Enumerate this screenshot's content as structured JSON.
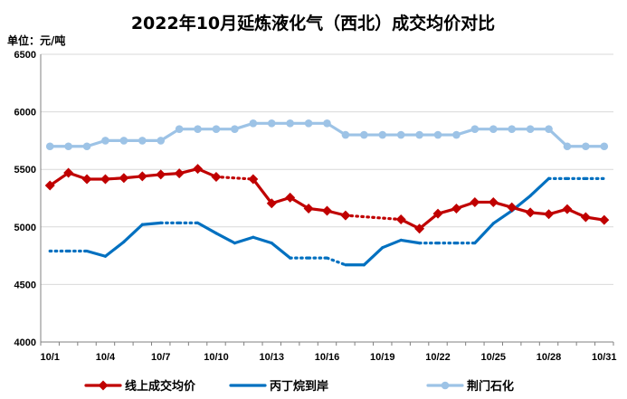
{
  "chart_data": {
    "type": "line",
    "title": "2022年10月延炼液化气（西北）成交均价对比",
    "ylabel": "单位：元/吨",
    "ylim": [
      4000,
      6500
    ],
    "yticks": [
      "4000",
      "4500",
      "5000",
      "5500",
      "6000",
      "6500"
    ],
    "x": [
      "10/1",
      "10/2",
      "10/3",
      "10/4",
      "10/5",
      "10/6",
      "10/7",
      "10/8",
      "10/9",
      "10/10",
      "10/11",
      "10/12",
      "10/13",
      "10/14",
      "10/15",
      "10/16",
      "10/17",
      "10/18",
      "10/19",
      "10/20",
      "10/21",
      "10/22",
      "10/23",
      "10/24",
      "10/25",
      "10/26",
      "10/27",
      "10/28",
      "10/29",
      "10/30",
      "10/31"
    ],
    "xticks": [
      "10/1",
      "10/4",
      "10/7",
      "10/10",
      "10/13",
      "10/16",
      "10/19",
      "10/22",
      "10/25",
      "10/28",
      "10/31"
    ],
    "grid": "horizontal",
    "legend": "bottom",
    "series": [
      {
        "name": "线上成交均价",
        "color": "#C00000",
        "marker": "diamond",
        "values": [
          5360,
          5470,
          5415,
          5415,
          5425,
          5440,
          5455,
          5465,
          5505,
          5435,
          null,
          5415,
          5205,
          5255,
          5160,
          5140,
          5100,
          null,
          null,
          5065,
          4985,
          5115,
          5160,
          5215,
          5215,
          5170,
          5125,
          5110,
          5155,
          5085,
          5060
        ],
        "gap_segments": [
          [
            9,
            11
          ],
          [
            16,
            19
          ]
        ]
      },
      {
        "name": "丙丁烷到岸",
        "color": "#0070C0",
        "marker": "none",
        "values": [
          4790,
          4790,
          4790,
          4745,
          4870,
          5020,
          5035,
          5035,
          5035,
          4945,
          4860,
          4910,
          4860,
          4730,
          4730,
          4730,
          4670,
          4670,
          4820,
          4885,
          4860,
          4860,
          4860,
          4860,
          5030,
          5140,
          5270,
          5420,
          5420,
          5420,
          5420
        ],
        "dashed_segments": [
          [
            0,
            2
          ],
          [
            6,
            8
          ],
          [
            13,
            16
          ],
          [
            20,
            23
          ],
          [
            27,
            30
          ]
        ]
      },
      {
        "name": "荆门石化",
        "color": "#9DC3E6",
        "marker": "circle",
        "values": [
          5700,
          5700,
          5700,
          5750,
          5750,
          5750,
          5750,
          5850,
          5850,
          5850,
          5850,
          5900,
          5900,
          5900,
          5900,
          5900,
          5800,
          5800,
          5800,
          5800,
          5800,
          5800,
          5800,
          5850,
          5850,
          5850,
          5850,
          5850,
          5700,
          5700,
          5700
        ]
      }
    ]
  }
}
